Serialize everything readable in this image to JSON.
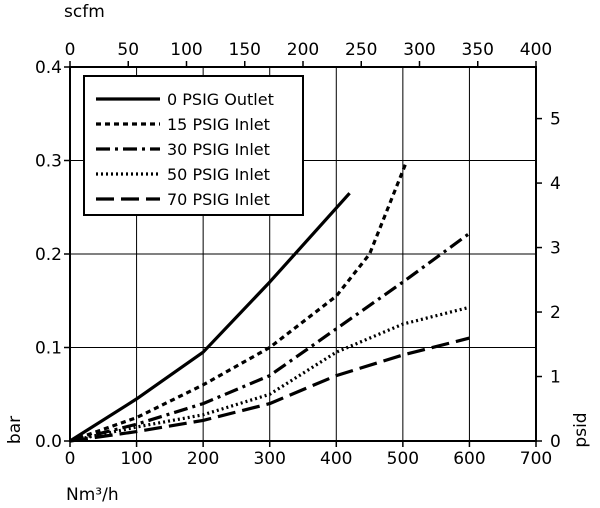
{
  "chart_data": {
    "type": "line",
    "title": "",
    "xlabel": "Nm³/h",
    "x2label": "scfm",
    "ylabel": "bar",
    "y2label": "psid",
    "xlim": [
      0,
      700
    ],
    "ylim": [
      0,
      0.4
    ],
    "x2lim": [
      0,
      400
    ],
    "y2lim": [
      0,
      5.8
    ],
    "x_ticks": [
      "0",
      "100",
      "200",
      "300",
      "400",
      "500",
      "600",
      "700"
    ],
    "y_ticks": [
      "0.0",
      "0.1",
      "0.2",
      "0.3",
      "0.4"
    ],
    "x2_ticks": [
      "0",
      "50",
      "100",
      "150",
      "200",
      "250",
      "300",
      "350",
      "400"
    ],
    "y2_ticks": [
      "0",
      "1",
      "2",
      "3",
      "4",
      "5"
    ],
    "grid": true,
    "legend_position": "top-left",
    "series": [
      {
        "name": "0 PSIG Outlet",
        "dash": "solid",
        "x": [
          0,
          100,
          200,
          300,
          420
        ],
        "y": [
          0,
          0.045,
          0.095,
          0.17,
          0.265
        ]
      },
      {
        "name": "15 PSIG Inlet",
        "dash": "short-dash",
        "x": [
          0,
          100,
          200,
          300,
          400,
          450,
          505
        ],
        "y": [
          0,
          0.025,
          0.06,
          0.1,
          0.155,
          0.2,
          0.298
        ]
      },
      {
        "name": "30 PSIG Inlet",
        "dash": "dash-dot",
        "x": [
          0,
          100,
          200,
          300,
          400,
          500,
          600
        ],
        "y": [
          0,
          0.018,
          0.04,
          0.07,
          0.12,
          0.17,
          0.222
        ]
      },
      {
        "name": "50 PSIG Inlet",
        "dash": "dotted",
        "x": [
          0,
          100,
          200,
          300,
          400,
          500,
          600
        ],
        "y": [
          0,
          0.015,
          0.028,
          0.05,
          0.095,
          0.125,
          0.143
        ]
      },
      {
        "name": "70 PSIG Inlet",
        "dash": "long-dash",
        "x": [
          0,
          100,
          200,
          300,
          400,
          500,
          600
        ],
        "y": [
          0,
          0.01,
          0.022,
          0.04,
          0.07,
          0.092,
          0.11
        ]
      }
    ]
  }
}
